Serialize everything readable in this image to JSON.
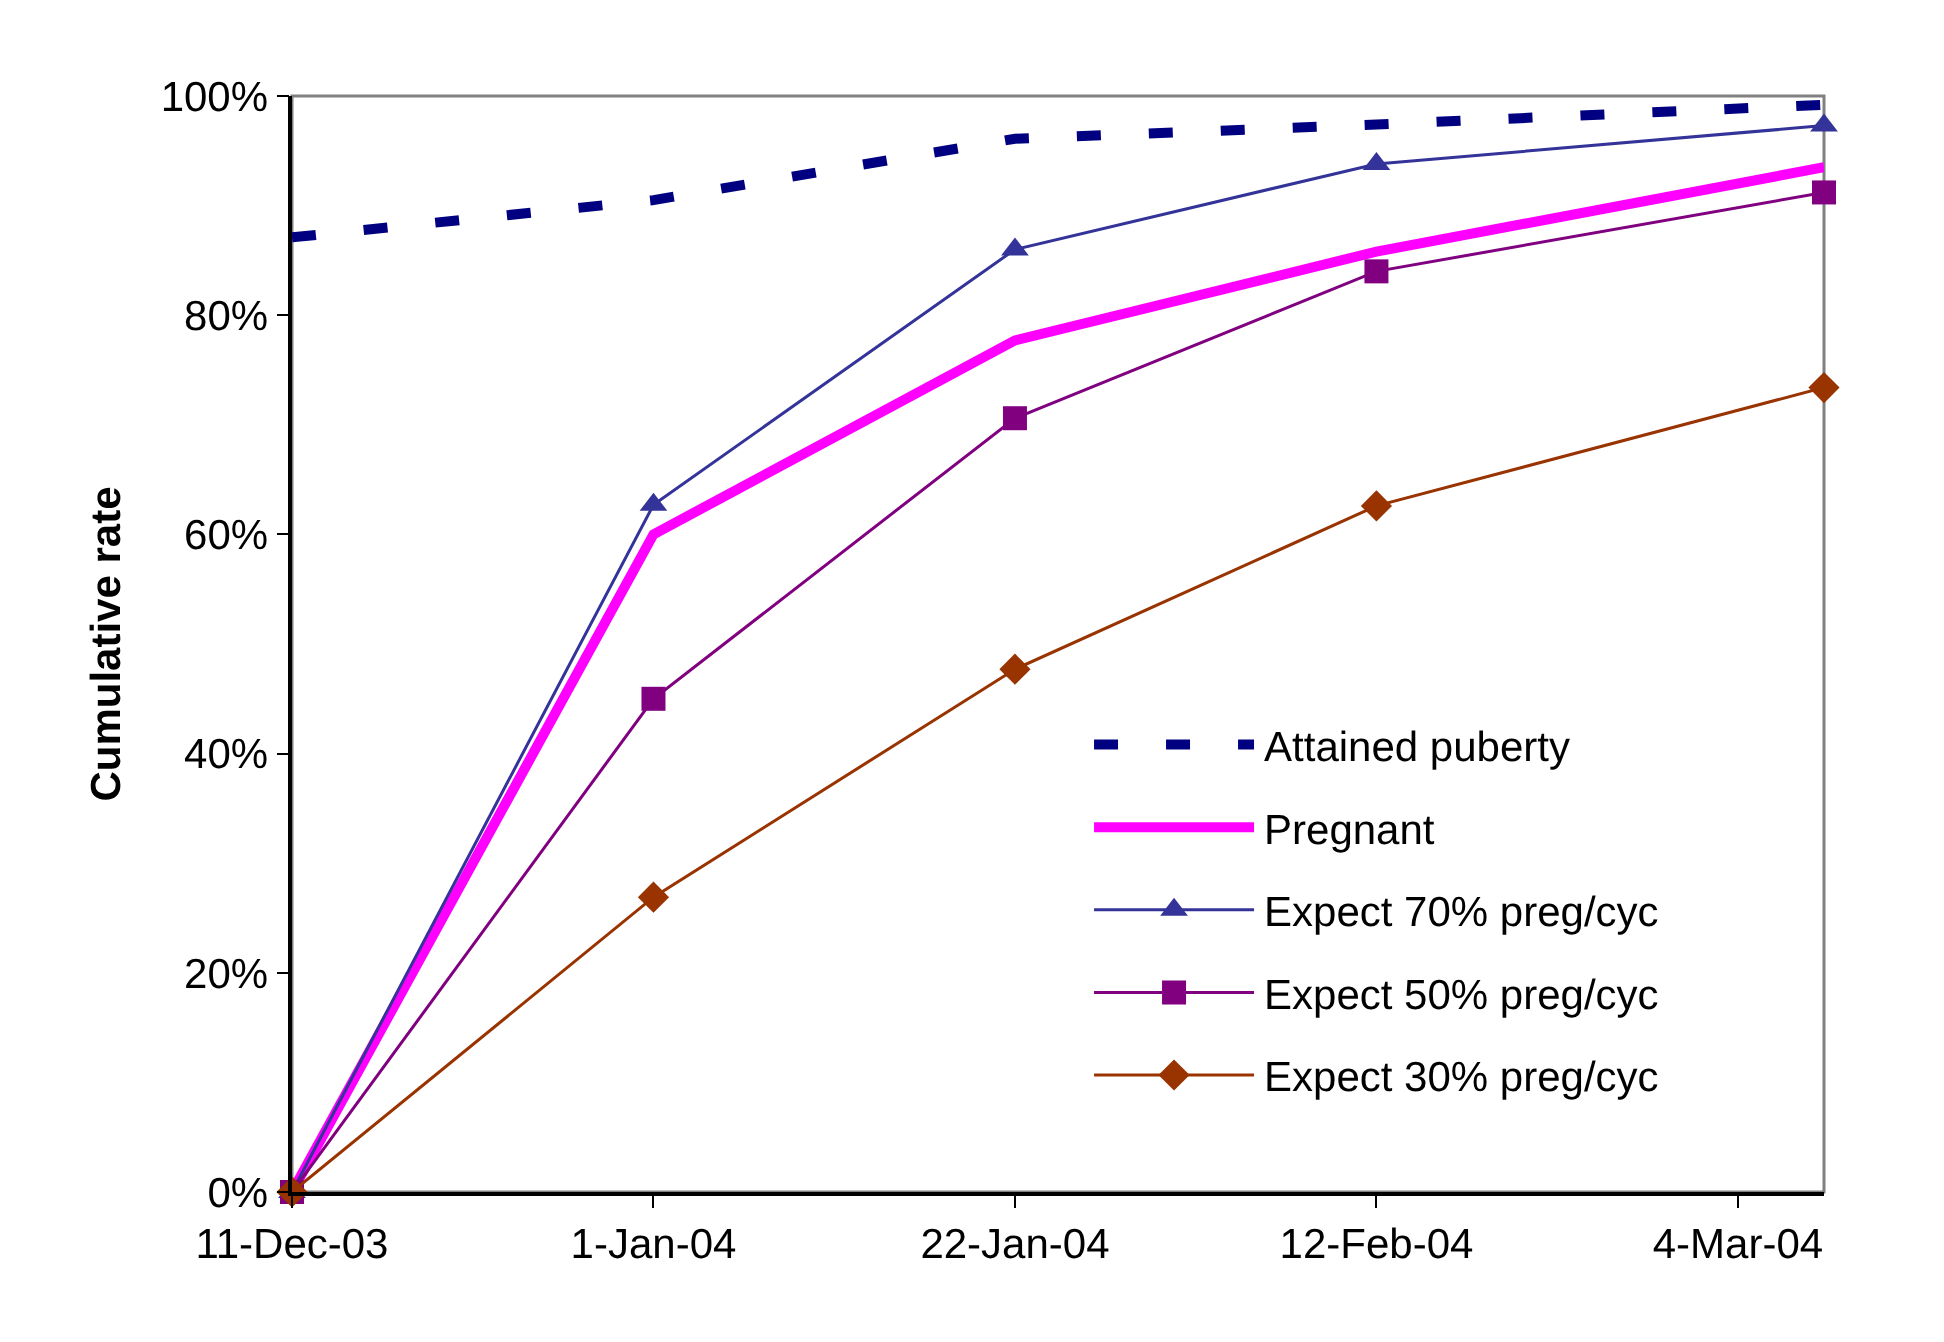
{
  "chart_data": {
    "type": "line",
    "ylabel": "Cumulative rate",
    "x": [
      "2003-12-11",
      "2004-01-01",
      "2004-01-22",
      "2004-02-12",
      "2004-03-09"
    ],
    "xlim": [
      "2003-12-11",
      "2004-03-09"
    ],
    "xticks": [
      {
        "value": "2003-12-11",
        "label": "11-Dec-03"
      },
      {
        "value": "2004-01-01",
        "label": "1-Jan-04"
      },
      {
        "value": "2004-01-22",
        "label": "22-Jan-04"
      },
      {
        "value": "2004-02-12",
        "label": "12-Feb-04"
      },
      {
        "value": "2004-03-04",
        "label": "4-Mar-04"
      }
    ],
    "ylim": [
      0,
      100
    ],
    "yticks": [
      {
        "value": 0,
        "label": "0%"
      },
      {
        "value": 20,
        "label": "20%"
      },
      {
        "value": 40,
        "label": "40%"
      },
      {
        "value": 60,
        "label": "60%"
      },
      {
        "value": 80,
        "label": "80%"
      },
      {
        "value": 100,
        "label": "100%"
      }
    ],
    "legend": "bottom right",
    "series": [
      {
        "name": "Attained puberty",
        "color": "#000080",
        "marker": "none",
        "line_style": "dashed",
        "values": [
          87.1,
          90.5,
          96.1,
          97.4,
          99.2
        ]
      },
      {
        "name": "Pregnant",
        "color": "#ff00ff",
        "marker": "none",
        "line_style": "solid",
        "values": [
          0,
          60.0,
          77.7,
          85.8,
          93.5
        ]
      },
      {
        "name": "Expect 70% preg/cyc",
        "color": "#333399",
        "marker": "triangle",
        "line_style": "solid",
        "values": [
          0,
          62.7,
          86.0,
          93.8,
          97.3
        ]
      },
      {
        "name": "Expect 50% preg/cyc",
        "color": "#800080",
        "marker": "square",
        "line_style": "solid",
        "values": [
          0,
          45.0,
          70.6,
          84.0,
          91.2
        ]
      },
      {
        "name": "Expect 30% preg/cyc",
        "color": "#993300",
        "marker": "diamond",
        "line_style": "solid",
        "values": [
          0,
          26.9,
          47.7,
          62.6,
          73.4
        ]
      }
    ]
  }
}
